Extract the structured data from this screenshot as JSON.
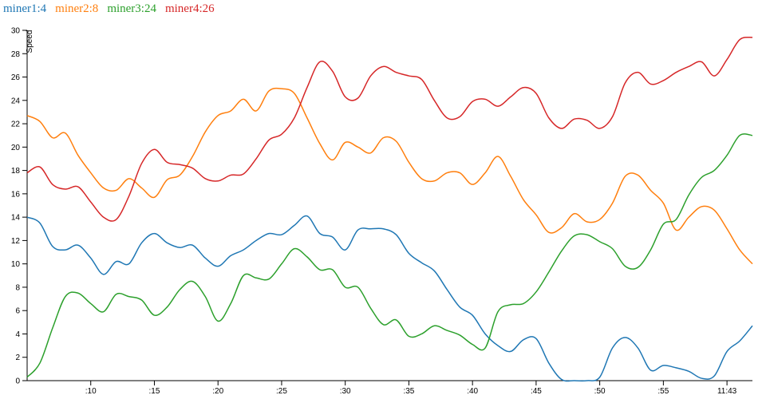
{
  "chart_data": {
    "type": "line",
    "y_label": "Speed",
    "x": [
      5,
      6,
      7,
      8,
      9,
      10,
      11,
      12,
      13,
      14,
      15,
      16,
      17,
      18,
      19,
      20,
      21,
      22,
      23,
      24,
      25,
      26,
      27,
      28,
      29,
      30,
      31,
      32,
      33,
      34,
      35,
      36,
      37,
      38,
      39,
      40,
      41,
      42,
      43,
      44,
      45,
      46,
      47,
      48,
      49,
      50,
      51,
      52,
      53,
      54,
      55,
      56,
      57,
      58,
      59,
      60,
      61,
      62
    ],
    "xlim": [
      5,
      62
    ],
    "xticks": [
      {
        "value": 10,
        "label": ":10"
      },
      {
        "value": 15,
        "label": ":15"
      },
      {
        "value": 20,
        "label": ":20"
      },
      {
        "value": 25,
        "label": ":25"
      },
      {
        "value": 30,
        "label": ":30"
      },
      {
        "value": 35,
        "label": ":35"
      },
      {
        "value": 40,
        "label": ":40"
      },
      {
        "value": 45,
        "label": ":45"
      },
      {
        "value": 50,
        "label": ":50"
      },
      {
        "value": 55,
        "label": ":55"
      },
      {
        "value": 60,
        "label": "11:43"
      }
    ],
    "ylim": [
      0,
      30
    ],
    "yticks": [
      0,
      2,
      4,
      6,
      8,
      10,
      12,
      14,
      16,
      18,
      20,
      22,
      24,
      26,
      28,
      30
    ],
    "series": [
      {
        "name": "miner1:4",
        "color": "#1f77b4",
        "values": [
          14,
          13.5,
          11.5,
          11.2,
          11.6,
          10.5,
          9.1,
          10.2,
          10,
          11.8,
          12.6,
          11.8,
          11.4,
          11.6,
          10.5,
          9.8,
          10.7,
          11.2,
          12,
          12.6,
          12.5,
          13.3,
          14.1,
          12.6,
          12.3,
          11.2,
          12.9,
          13,
          13,
          12.5,
          10.9,
          10.1,
          9.4,
          7.8,
          6.3,
          5.6,
          4,
          3,
          2.5,
          3.5,
          3.6,
          1.5,
          0.1,
          0,
          0,
          0.3,
          2.8,
          3.7,
          2.8,
          0.9,
          1.3,
          1.1,
          0.8,
          0.2,
          0.4,
          2.5,
          3.4,
          4.7
        ]
      },
      {
        "name": "miner2:8",
        "color": "#ff7f0e",
        "values": [
          22.7,
          22.2,
          20.8,
          21.2,
          19.3,
          17.8,
          16.5,
          16.3,
          17.3,
          16.5,
          15.7,
          17.2,
          17.6,
          19.2,
          21.3,
          22.7,
          23.1,
          24.1,
          23.1,
          24.8,
          25,
          24.6,
          22.5,
          20.3,
          18.9,
          20.4,
          20,
          19.5,
          20.8,
          20.5,
          18.7,
          17.3,
          17.1,
          17.8,
          17.8,
          16.8,
          17.8,
          19.2,
          17.5,
          15.5,
          14.2,
          12.7,
          13.1,
          14.3,
          13.6,
          13.8,
          15.2,
          17.5,
          17.6,
          16.3,
          15.2,
          12.9,
          14,
          14.9,
          14.6,
          13,
          11.2,
          10
        ]
      },
      {
        "name": "miner3:24",
        "color": "#2ca02c",
        "values": [
          0.3,
          1.5,
          4.5,
          7.2,
          7.5,
          6.6,
          5.9,
          7.4,
          7.2,
          6.9,
          5.6,
          6.3,
          7.8,
          8.5,
          7.2,
          5.1,
          6.6,
          9,
          8.8,
          8.7,
          10,
          11.3,
          10.6,
          9.5,
          9.5,
          8,
          8,
          6.2,
          4.8,
          5.2,
          3.8,
          4,
          4.7,
          4.3,
          3.9,
          3.1,
          2.8,
          5.9,
          6.5,
          6.6,
          7.6,
          9.3,
          11.1,
          12.4,
          12.5,
          11.9,
          11.3,
          9.8,
          9.7,
          11.2,
          13.4,
          13.8,
          15.9,
          17.4,
          18,
          19.3,
          21,
          21
        ]
      },
      {
        "name": "miner4:26",
        "color": "#d62728",
        "values": [
          17.8,
          18.3,
          16.8,
          16.4,
          16.6,
          15.3,
          14,
          13.8,
          15.8,
          18.6,
          19.8,
          18.7,
          18.5,
          18.2,
          17.3,
          17.1,
          17.6,
          17.7,
          19,
          20.6,
          21.1,
          22.5,
          25.1,
          27.3,
          26.5,
          24.3,
          24.2,
          26.1,
          26.9,
          26.4,
          26.1,
          25.8,
          24,
          22.5,
          22.6,
          23.9,
          24.1,
          23.5,
          24.3,
          25.1,
          24.6,
          22.5,
          21.6,
          22.4,
          22.3,
          21.6,
          22.6,
          25.5,
          26.4,
          25.4,
          25.7,
          26.4,
          26.9,
          27.3,
          26.1,
          27.5,
          29.2,
          29.4
        ]
      }
    ]
  }
}
